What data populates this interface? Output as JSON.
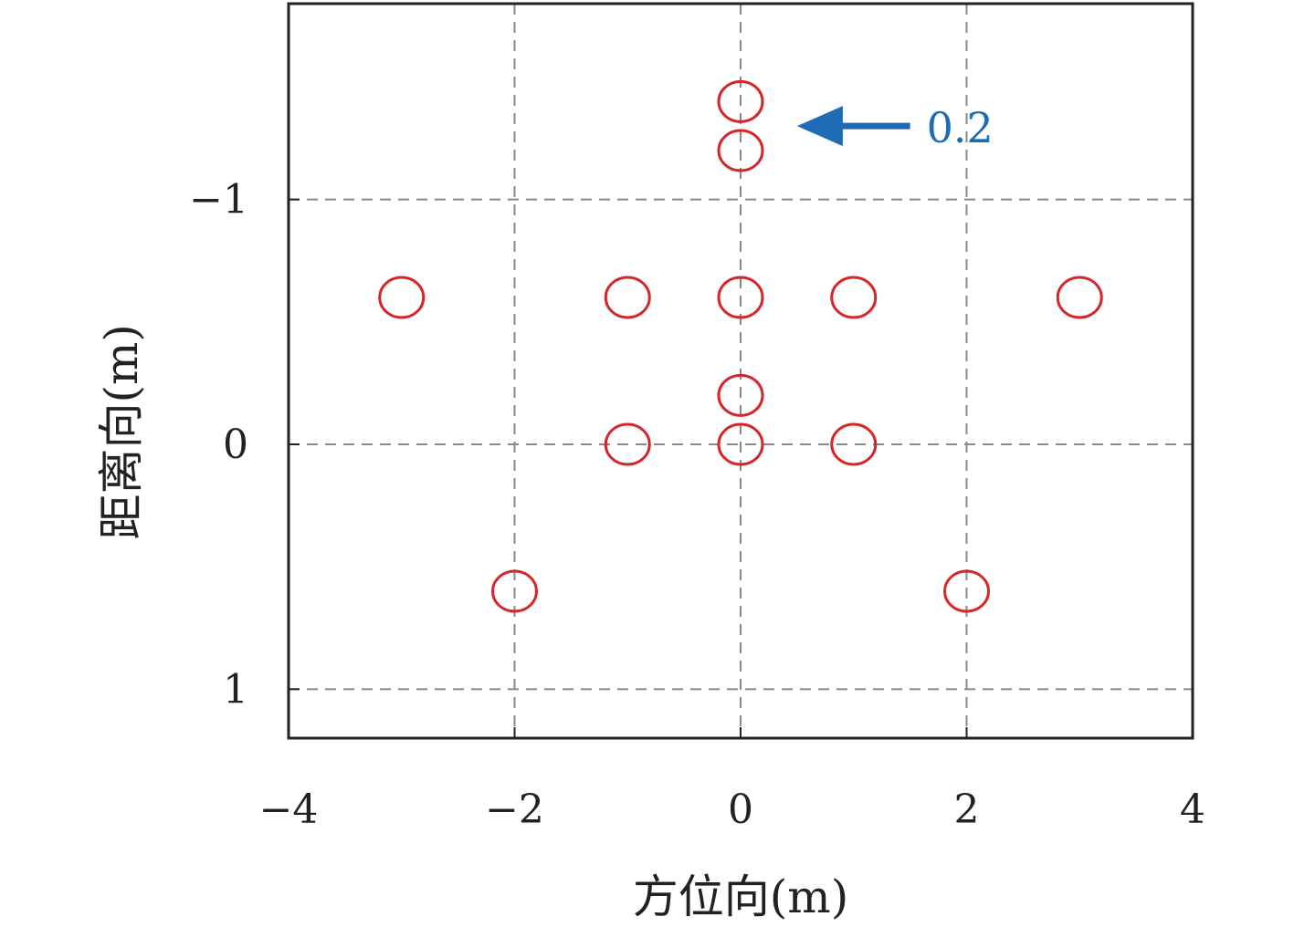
{
  "chart_data": {
    "type": "scatter",
    "xlabel": "方位向(m)",
    "ylabel": "距离向(m)",
    "xlim": [
      -4,
      4
    ],
    "ylim": [
      -1.8,
      1.2
    ],
    "y_inverted": true,
    "xticks": [
      -4,
      -2,
      0,
      2,
      4
    ],
    "xtick_labels": [
      "−4",
      "−2",
      "0",
      "2",
      "4"
    ],
    "yticks": [
      -1,
      0,
      1
    ],
    "ytick_labels": [
      "−1",
      "0",
      "1"
    ],
    "grid": true,
    "marker": "open-circle",
    "marker_color": "#d62728",
    "points": [
      {
        "x": 0,
        "y": -1.4
      },
      {
        "x": 0,
        "y": -1.2
      },
      {
        "x": -3,
        "y": -0.6
      },
      {
        "x": -1,
        "y": -0.6
      },
      {
        "x": 0,
        "y": -0.6
      },
      {
        "x": 1,
        "y": -0.6
      },
      {
        "x": 3,
        "y": -0.6
      },
      {
        "x": 0,
        "y": -0.2
      },
      {
        "x": -1,
        "y": 0
      },
      {
        "x": 0,
        "y": 0
      },
      {
        "x": 1,
        "y": 0
      },
      {
        "x": -2,
        "y": 0.6
      },
      {
        "x": 2,
        "y": 0.6
      }
    ],
    "annotation": {
      "text": "0.2",
      "color": "#1f6bb5",
      "arrow_head": {
        "x": 0.5,
        "y": -1.3
      },
      "arrow_tail": {
        "x": 1.5,
        "y": -1.3
      }
    }
  }
}
